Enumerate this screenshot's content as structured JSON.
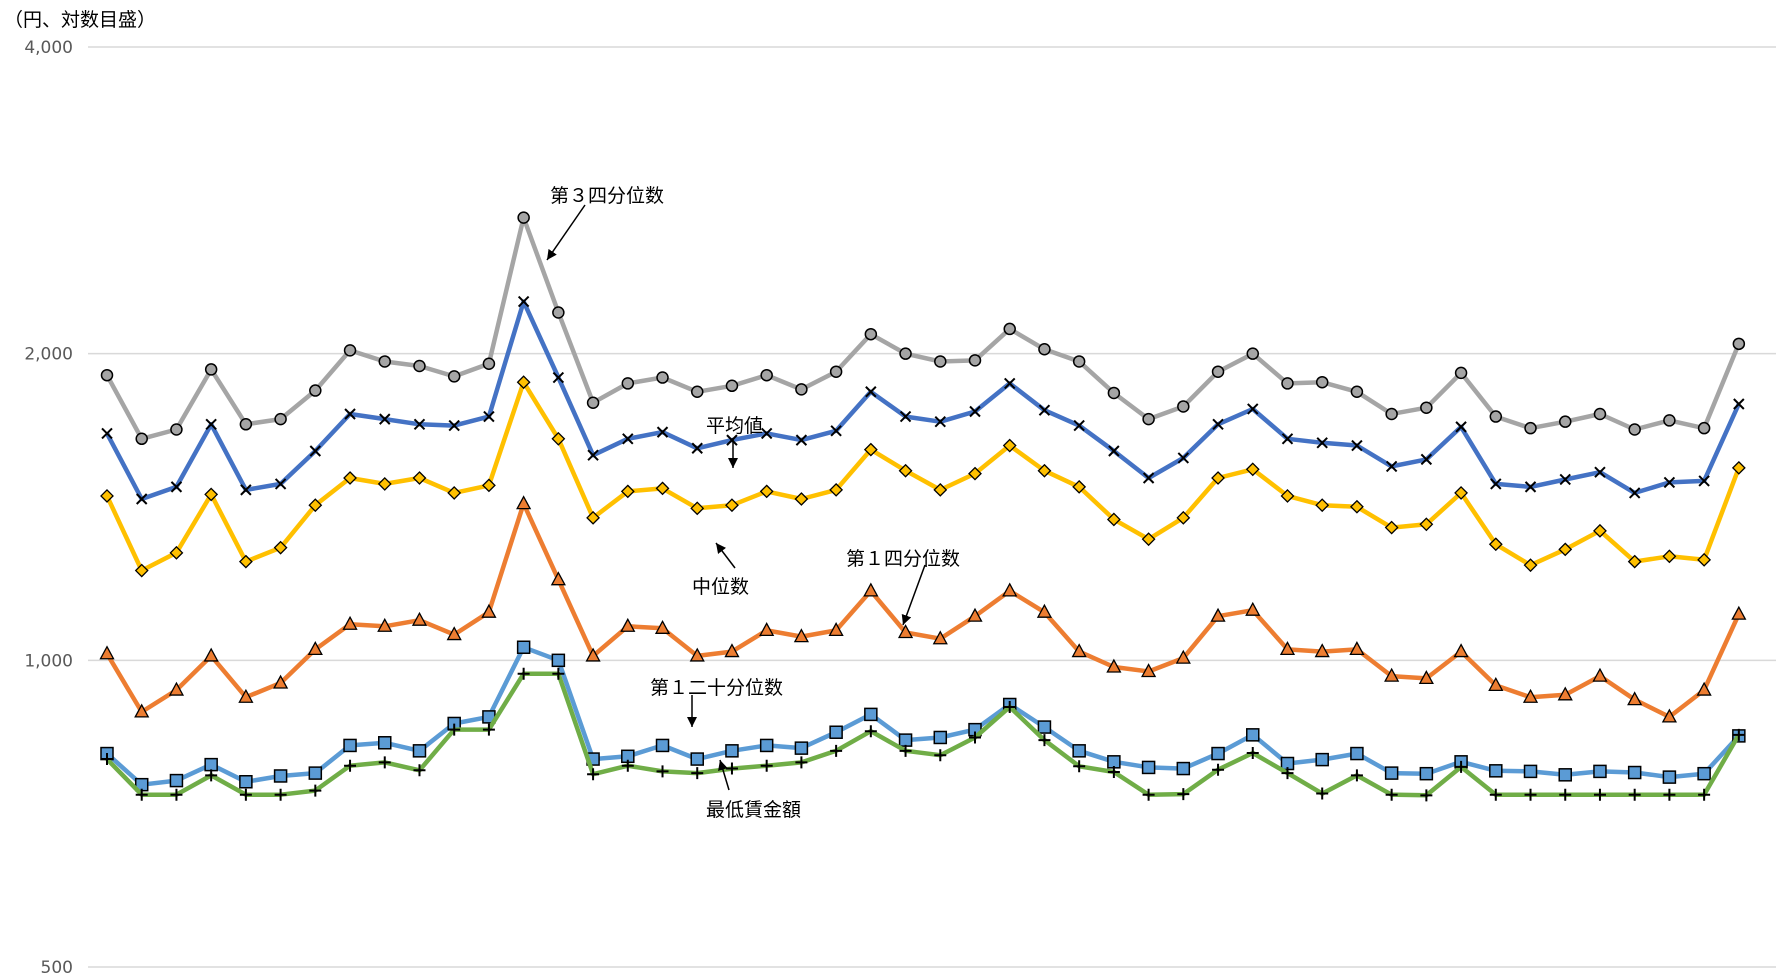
{
  "chart_data": {
    "type": "line",
    "title": "",
    "xlabel": "",
    "ylabel": "（円、対数目盛）",
    "yscale": "log",
    "ylim": [
      500,
      4000
    ],
    "yticks": [
      500,
      1000,
      2000,
      4000
    ],
    "ytick_labels": [
      "500",
      "1,000",
      "2,000",
      "4,000"
    ],
    "grid": true,
    "legend": "none",
    "annotations": [
      "第３四分位数",
      "平均値",
      "中位数",
      "第１四分位数",
      "第１二十分位数",
      "最低賃金額"
    ],
    "series": [
      {
        "key": "q3",
        "color": "#a5a5a5",
        "marker": "circle",
        "marker_fill": "#a5a5a5",
        "values": [
          1905,
          1650,
          1685,
          1930,
          1705,
          1725,
          1840,
          2015,
          1965,
          1945,
          1900,
          1955,
          2720,
          2195,
          1790,
          1870,
          1895,
          1835,
          1860,
          1905,
          1845,
          1920,
          2090,
          2000,
          1965,
          1970,
          2115,
          2020,
          1965,
          1830,
          1725,
          1775,
          1920,
          2000,
          1870,
          1875,
          1835,
          1745,
          1770,
          1915,
          1735,
          1690,
          1715,
          1745,
          1685,
          1720,
          1690,
          2045
        ]
      },
      {
        "key": "mean",
        "color": "#4472c4",
        "marker": "x",
        "marker_fill": "none",
        "values": [
          1670,
          1440,
          1480,
          1705,
          1470,
          1490,
          1605,
          1745,
          1725,
          1705,
          1700,
          1735,
          2250,
          1895,
          1590,
          1650,
          1675,
          1615,
          1645,
          1670,
          1645,
          1680,
          1835,
          1735,
          1715,
          1755,
          1870,
          1760,
          1700,
          1605,
          1510,
          1580,
          1705,
          1765,
          1650,
          1635,
          1625,
          1550,
          1575,
          1695,
          1490,
          1480,
          1505,
          1530,
          1460,
          1495,
          1500,
          1785
        ]
      },
      {
        "key": "median",
        "color": "#ffc000",
        "marker": "diamond",
        "marker_fill": "#ffc000",
        "values": [
          1450,
          1225,
          1275,
          1455,
          1250,
          1290,
          1420,
          1510,
          1490,
          1510,
          1460,
          1485,
          1875,
          1650,
          1380,
          1465,
          1475,
          1410,
          1420,
          1465,
          1440,
          1470,
          1610,
          1535,
          1470,
          1525,
          1625,
          1535,
          1480,
          1375,
          1315,
          1380,
          1510,
          1540,
          1450,
          1420,
          1415,
          1350,
          1360,
          1460,
          1300,
          1240,
          1285,
          1340,
          1250,
          1265,
          1255,
          1545
        ]
      },
      {
        "key": "q1",
        "color": "#ed7d31",
        "marker": "triangle",
        "marker_fill": "#ed7d31",
        "values": [
          1015,
          890,
          935,
          1010,
          920,
          950,
          1025,
          1085,
          1080,
          1095,
          1060,
          1115,
          1425,
          1200,
          1010,
          1080,
          1075,
          1010,
          1020,
          1070,
          1055,
          1070,
          1170,
          1065,
          1050,
          1105,
          1170,
          1115,
          1020,
          985,
          975,
          1005,
          1105,
          1120,
          1025,
          1020,
          1025,
          965,
          960,
          1020,
          945,
          920,
          925,
          965,
          915,
          880,
          935,
          1110
        ]
      },
      {
        "key": "p5",
        "color": "#5b9bd5",
        "marker": "square",
        "marker_fill": "#5b9bd5",
        "values": [
          810,
          755,
          762,
          790,
          760,
          770,
          775,
          825,
          830,
          815,
          867,
          880,
          1030,
          1000,
          800,
          805,
          825,
          800,
          815,
          825,
          820,
          850,
          885,
          835,
          840,
          855,
          905,
          860,
          815,
          795,
          785,
          783,
          810,
          845,
          792,
          799,
          810,
          775,
          774,
          795,
          779,
          778,
          772,
          778,
          776,
          768,
          774,
          843
        ]
      },
      {
        "key": "min",
        "color": "#70ad47",
        "marker": "plus",
        "marker_fill": "#000000",
        "values": [
          800,
          738,
          738,
          771,
          738,
          738,
          745,
          788,
          794,
          780,
          855,
          855,
          970,
          970,
          773,
          788,
          778,
          775,
          783,
          788,
          794,
          815,
          852,
          815,
          807,
          840,
          900,
          835,
          787,
          777,
          738,
          739,
          781,
          811,
          775,
          740,
          771,
          738,
          737,
          786,
          738,
          738,
          738,
          738,
          738,
          738,
          738,
          845
        ]
      }
    ]
  }
}
